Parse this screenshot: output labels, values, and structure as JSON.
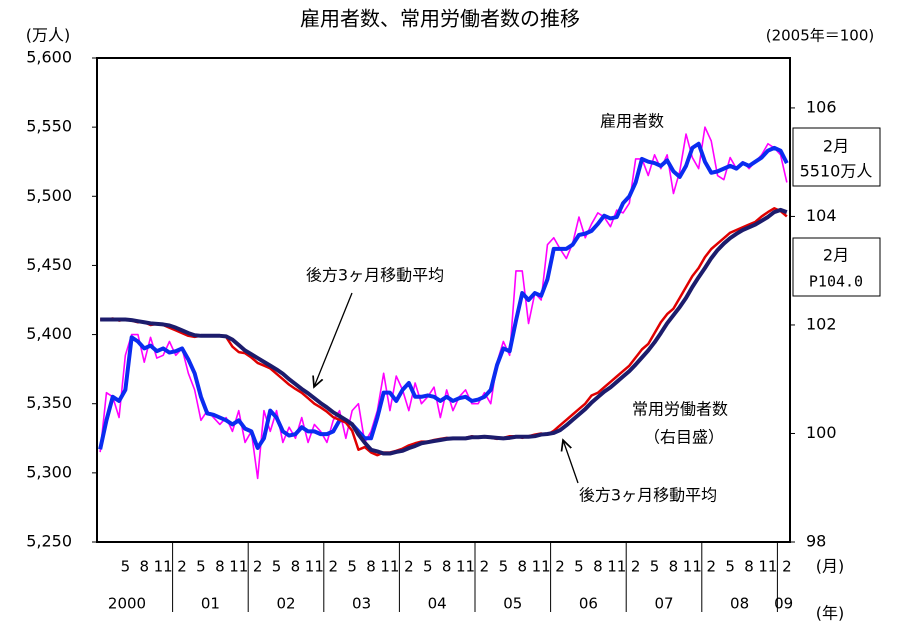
{
  "chart_data": {
    "type": "line",
    "title": "雇用者数、常用労働者数の推移",
    "y_unit": "(万人)",
    "y2_unit": "(2005年＝100)",
    "x_unit_month": "(月)",
    "x_unit_year": "(年)",
    "years": [
      "2000",
      "01",
      "02",
      "03",
      "04",
      "05",
      "06",
      "07",
      "08",
      "09"
    ],
    "categories": [
      null,
      null,
      null,
      null,
      "5",
      null,
      null,
      "8",
      null,
      null,
      "11",
      null,
      null,
      "2",
      null,
      null,
      "5",
      null,
      null,
      "8",
      null,
      null,
      "11",
      null,
      null,
      "2",
      null,
      null,
      "5",
      null,
      null,
      "8",
      null,
      null,
      "11",
      null,
      null,
      "2",
      null,
      null,
      "5",
      null,
      null,
      "8",
      null,
      null,
      "11",
      null,
      null,
      "2",
      null,
      null,
      "5",
      null,
      null,
      "8",
      null,
      null,
      "11",
      null,
      null,
      "2",
      null,
      null,
      "5",
      null,
      null,
      "8",
      null,
      null,
      "11",
      null,
      null,
      "2",
      null,
      null,
      "5",
      null,
      null,
      "8",
      null,
      null,
      "11",
      null,
      null,
      "2",
      null,
      null,
      "5",
      null,
      null,
      "8",
      null,
      null,
      "11",
      null,
      null,
      "2",
      null,
      null,
      "5",
      null,
      null,
      "8",
      null,
      null,
      "11",
      null,
      null,
      "2"
    ],
    "ylim": [
      5250,
      5600
    ],
    "yticks": [
      {
        "value": 5250,
        "label": "5,250"
      },
      {
        "value": 5300,
        "label": "5,300"
      },
      {
        "value": 5350,
        "label": "5,350"
      },
      {
        "value": 5400,
        "label": "5,400"
      },
      {
        "value": 5450,
        "label": "5,450"
      },
      {
        "value": 5500,
        "label": "5,500"
      },
      {
        "value": 5550,
        "label": "5,550"
      },
      {
        "value": 5600,
        "label": "5,600"
      }
    ],
    "y2lim": [
      98,
      106.92
    ],
    "y2ticks": [
      98,
      100,
      102,
      104,
      106
    ],
    "series": [
      {
        "name": "雇用者数",
        "color": "#ff00ff",
        "width": 1.6,
        "axis": "y",
        "values": [
          5315,
          5358,
          5355,
          5340,
          5385,
          5400,
          5400,
          5380,
          5398,
          5383,
          5385,
          5395,
          5385,
          5390,
          5372,
          5360,
          5338,
          5345,
          5340,
          5335,
          5340,
          5330,
          5345,
          5322,
          5330,
          5296,
          5345,
          5330,
          5345,
          5322,
          5333,
          5325,
          5340,
          5322,
          5335,
          5330,
          5322,
          5338,
          5345,
          5325,
          5345,
          5350,
          5322,
          5330,
          5345,
          5372,
          5345,
          5370,
          5360,
          5345,
          5365,
          5350,
          5355,
          5362,
          5340,
          5360,
          5345,
          5355,
          5360,
          5350,
          5350,
          5358,
          5350,
          5380,
          5395,
          5385,
          5446,
          5446,
          5408,
          5430,
          5425,
          5465,
          5470,
          5462,
          5455,
          5466,
          5485,
          5470,
          5480,
          5488,
          5485,
          5478,
          5490,
          5488,
          5495,
          5527,
          5527,
          5515,
          5530,
          5520,
          5530,
          5502,
          5518,
          5545,
          5528,
          5520,
          5550,
          5540,
          5515,
          5512,
          5528,
          5520,
          5525,
          5520,
          5525,
          5530,
          5538,
          5535,
          5530,
          5510
        ]
      },
      {
        "name": "後方3ヶ月移動平均",
        "color": "#0a2cf0",
        "width": 4,
        "axis": "y",
        "values": [
          5317,
          5338,
          5355,
          5352,
          5360,
          5398,
          5395,
          5390,
          5392,
          5388,
          5390,
          5387,
          5388,
          5390,
          5382,
          5372,
          5355,
          5343,
          5342,
          5340,
          5338,
          5335,
          5338,
          5332,
          5330,
          5318,
          5325,
          5345,
          5340,
          5330,
          5327,
          5328,
          5333,
          5330,
          5330,
          5328,
          5328,
          5330,
          5338,
          5338,
          5335,
          5330,
          5325,
          5325,
          5340,
          5358,
          5358,
          5352,
          5360,
          5365,
          5355,
          5355,
          5356,
          5355,
          5352,
          5355,
          5352,
          5354,
          5355,
          5352,
          5353,
          5355,
          5360,
          5378,
          5390,
          5388,
          5410,
          5430,
          5425,
          5430,
          5428,
          5440,
          5462,
          5462,
          5462,
          5465,
          5472,
          5473,
          5475,
          5480,
          5486,
          5484,
          5485,
          5495,
          5500,
          5510,
          5527,
          5525,
          5524,
          5522,
          5526,
          5518,
          5514,
          5522,
          5535,
          5538,
          5525,
          5517,
          5518,
          5520,
          5522,
          5520,
          5524,
          5522,
          5525,
          5528,
          5533,
          5535,
          5533,
          5524
        ]
      },
      {
        "name": "常用労働者数",
        "color": "#e00000",
        "width": 2.5,
        "axis": "y2",
        "values": [
          102.1,
          102.1,
          102.12,
          102.08,
          102.1,
          102.08,
          102.05,
          102.05,
          102.0,
          102.02,
          102.0,
          101.95,
          101.9,
          101.85,
          101.8,
          101.78,
          101.8,
          101.8,
          101.8,
          101.8,
          101.78,
          101.6,
          101.5,
          101.48,
          101.4,
          101.3,
          101.25,
          101.2,
          101.1,
          101.0,
          100.9,
          100.82,
          100.75,
          100.65,
          100.55,
          100.48,
          100.4,
          100.3,
          100.25,
          100.2,
          100.05,
          99.7,
          99.75,
          99.65,
          99.6,
          99.65,
          99.65,
          99.68,
          99.72,
          99.78,
          99.82,
          99.85,
          99.85,
          99.88,
          99.9,
          99.92,
          99.9,
          99.92,
          99.92,
          99.95,
          99.92,
          99.95,
          99.92,
          99.9,
          99.92,
          99.95,
          99.95,
          99.92,
          99.95,
          99.98,
          100.0,
          99.98,
          100.05,
          100.15,
          100.25,
          100.35,
          100.45,
          100.55,
          100.7,
          100.75,
          100.85,
          100.95,
          101.05,
          101.15,
          101.25,
          101.4,
          101.55,
          101.65,
          101.85,
          102.05,
          102.2,
          102.3,
          102.5,
          102.7,
          102.9,
          103.05,
          103.25,
          103.4,
          103.5,
          103.6,
          103.7,
          103.75,
          103.8,
          103.85,
          103.9,
          104.0,
          104.08,
          104.15,
          104.1,
          104.0
        ]
      },
      {
        "name": "後方3ヶ月移動平均",
        "color": "#1c1c6c",
        "width": 4,
        "axis": "y2",
        "values": [
          102.1,
          102.1,
          102.1,
          102.1,
          102.1,
          102.09,
          102.07,
          102.05,
          102.03,
          102.02,
          102.01,
          101.99,
          101.95,
          101.9,
          101.85,
          101.81,
          101.8,
          101.8,
          101.8,
          101.8,
          101.79,
          101.73,
          101.63,
          101.53,
          101.46,
          101.39,
          101.32,
          101.25,
          101.18,
          101.1,
          101.0,
          100.91,
          100.82,
          100.74,
          100.65,
          100.56,
          100.48,
          100.39,
          100.32,
          100.25,
          100.17,
          99.98,
          99.83,
          99.7,
          99.67,
          99.63,
          99.63,
          99.66,
          99.68,
          99.73,
          99.77,
          99.82,
          99.84,
          99.86,
          99.88,
          99.9,
          99.91,
          99.91,
          99.91,
          99.93,
          99.93,
          99.94,
          99.93,
          99.92,
          99.91,
          99.92,
          99.94,
          99.94,
          99.94,
          99.95,
          99.98,
          99.99,
          100.01,
          100.06,
          100.15,
          100.25,
          100.35,
          100.45,
          100.57,
          100.67,
          100.77,
          100.85,
          100.95,
          101.05,
          101.15,
          101.27,
          101.4,
          101.53,
          101.68,
          101.85,
          102.03,
          102.18,
          102.33,
          102.5,
          102.7,
          102.88,
          103.05,
          103.23,
          103.38,
          103.5,
          103.6,
          103.68,
          103.75,
          103.8,
          103.85,
          103.92,
          103.99,
          104.08,
          104.12,
          104.08
        ]
      }
    ],
    "annotations": [
      "雇用者数",
      "後方3ヶ月移動平均",
      "常用労働者数",
      "（右目盛）",
      "後方3ヶ月移動平均"
    ],
    "boxes": [
      [
        "2月",
        "5510万人"
      ],
      [
        "2月",
        "P104.0"
      ]
    ]
  }
}
